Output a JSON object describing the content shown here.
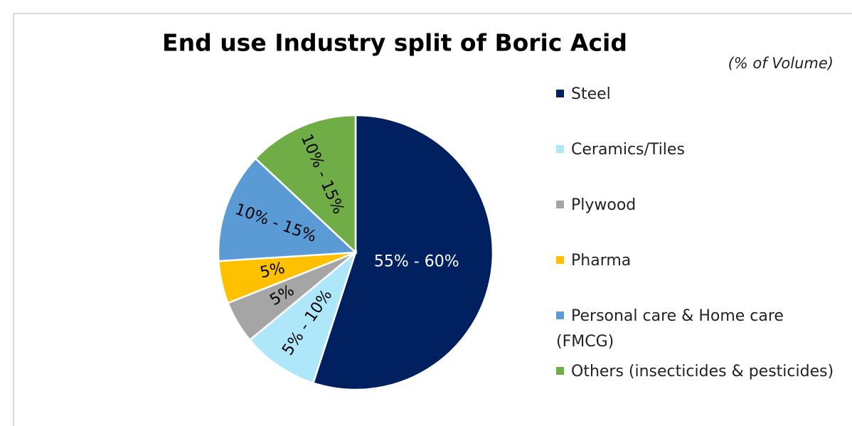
{
  "chart_data": {
    "type": "pie",
    "title": "End use Industry split of Boric Acid",
    "subtitle": "(% of Volume)",
    "categories": [
      "Steel",
      "Ceramics/Tiles",
      "Plywood",
      "Pharma",
      "Personal care & Home care (FMCG)",
      "Others (insecticides & pesticides)"
    ],
    "values": [
      55,
      9,
      5,
      5,
      13,
      13
    ],
    "value_labels": [
      "55% - 60%",
      "5% - 10%",
      "5%",
      "5%",
      "10% - 15%",
      "10% - 15%"
    ],
    "colors": [
      "#002060",
      "#aee6fa",
      "#a5a5a5",
      "#ffc000",
      "#5b9bd5",
      "#70ad47"
    ],
    "legend": "right"
  }
}
